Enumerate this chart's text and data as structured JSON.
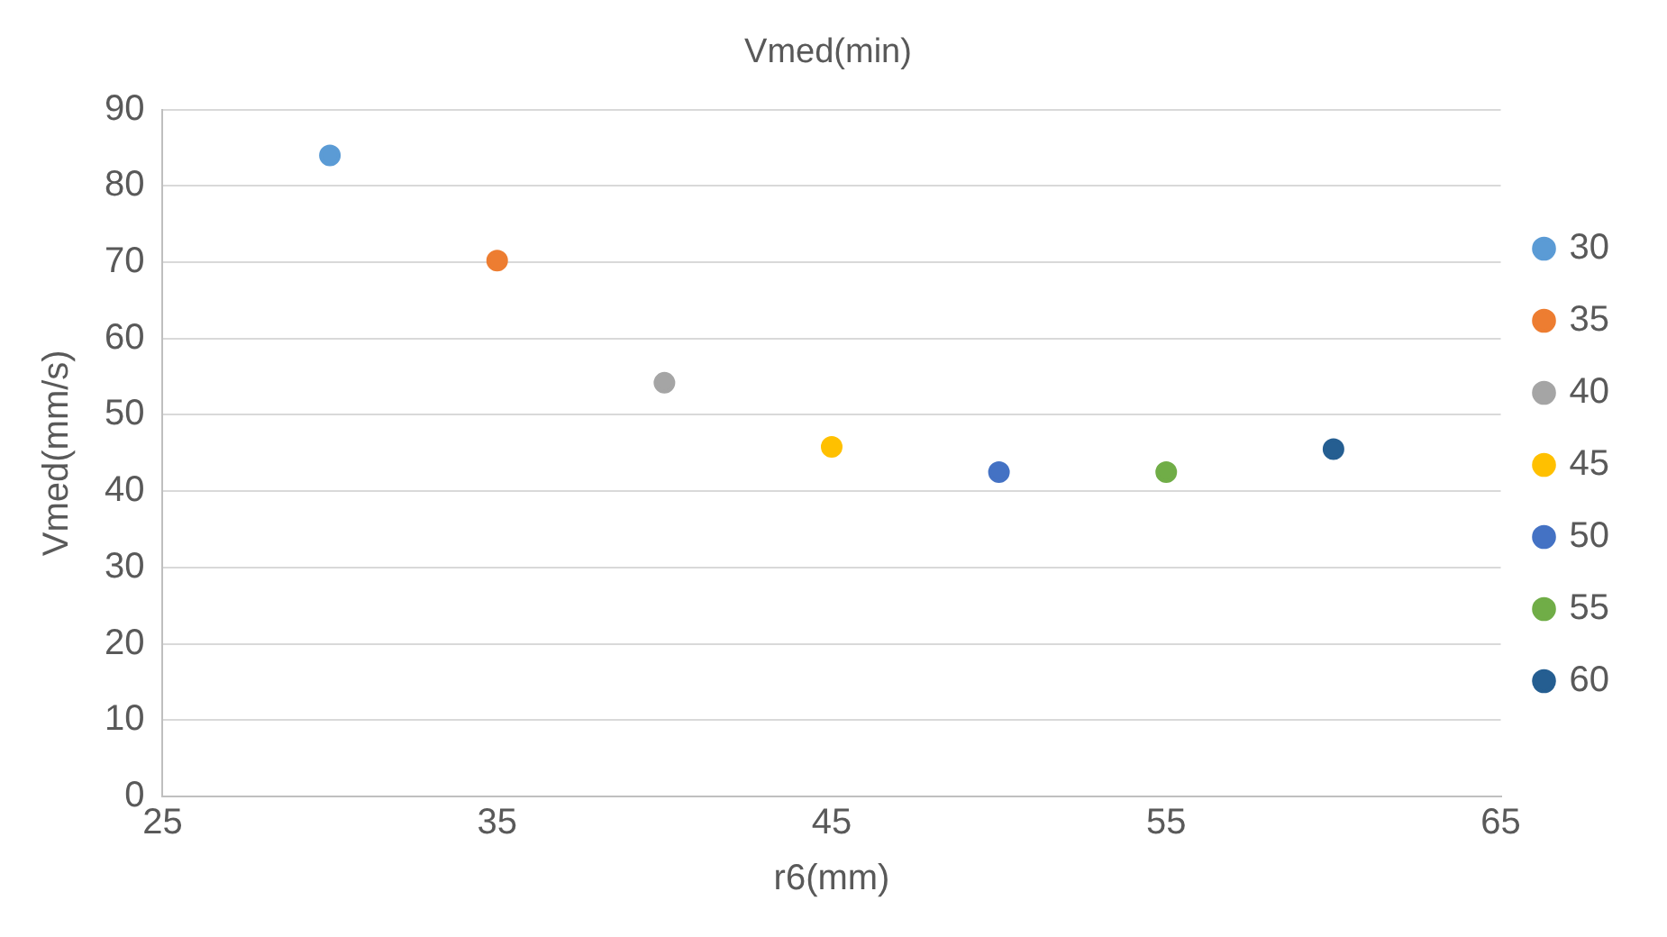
{
  "chart_data": {
    "type": "scatter",
    "title": "Vmed(min)",
    "xlabel": "r6(mm)",
    "ylabel": "Vmed(mm/s)",
    "series": [
      {
        "name": "30",
        "color": "#5b9bd5",
        "x": [
          30
        ],
        "values": [
          84
        ]
      },
      {
        "name": "35",
        "color": "#ed7d31",
        "x": [
          35
        ],
        "values": [
          70.2
        ]
      },
      {
        "name": "40",
        "color": "#a5a5a5",
        "x": [
          40
        ],
        "values": [
          54.2
        ]
      },
      {
        "name": "45",
        "color": "#ffc000",
        "x": [
          45
        ],
        "values": [
          45.8
        ]
      },
      {
        "name": "50",
        "color": "#4472c4",
        "x": [
          50
        ],
        "values": [
          42.5
        ]
      },
      {
        "name": "55",
        "color": "#70ad47",
        "x": [
          55
        ],
        "values": [
          42.5
        ]
      },
      {
        "name": "60",
        "color": "#255e91",
        "x": [
          60
        ],
        "values": [
          45.5
        ]
      }
    ],
    "xlim": [
      25,
      65
    ],
    "xticks": [
      25,
      35,
      45,
      55,
      65
    ],
    "ylim": [
      0,
      90
    ],
    "yticks": [
      0,
      10,
      20,
      30,
      40,
      50,
      60,
      70,
      80,
      90
    ],
    "grid": "y",
    "legend": "right",
    "marker": "circle"
  }
}
